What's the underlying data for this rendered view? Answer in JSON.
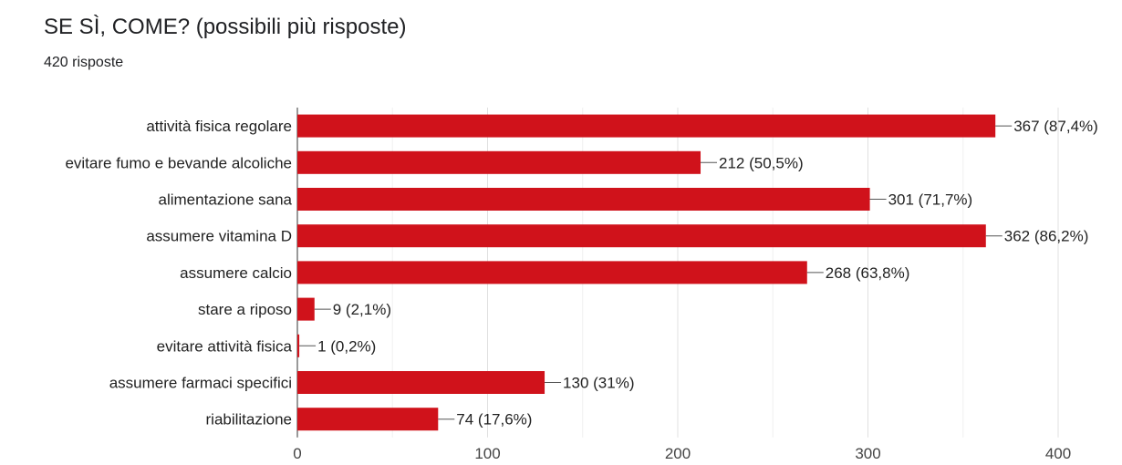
{
  "title": "SE SÌ, COME? (possibili più risposte)",
  "subtitle": "420 risposte",
  "bar_color": "#d0121b",
  "chart_data": {
    "type": "bar",
    "orientation": "horizontal",
    "categories": [
      "attività fisica regolare",
      "evitare fumo e bevande alcoliche",
      "alimentazione sana",
      "assumere vitamina D",
      "assumere calcio",
      "stare a riposo",
      "evitare attività fisica",
      "assumere farmaci specifici",
      "riabilitazione"
    ],
    "values": [
      367,
      212,
      301,
      362,
      268,
      9,
      1,
      130,
      74
    ],
    "labels": [
      "367 (87,4%)",
      "212 (50,5%)",
      "301 (71,7%)",
      "362 (86,2%)",
      "268 (63,8%)",
      "9 (2,1%)",
      "1 (0,2%)",
      "130 (31%)",
      "74 (17,6%)"
    ],
    "xlim": [
      0,
      400
    ],
    "xticks": [
      0,
      100,
      200,
      300,
      400
    ],
    "grid": true
  }
}
